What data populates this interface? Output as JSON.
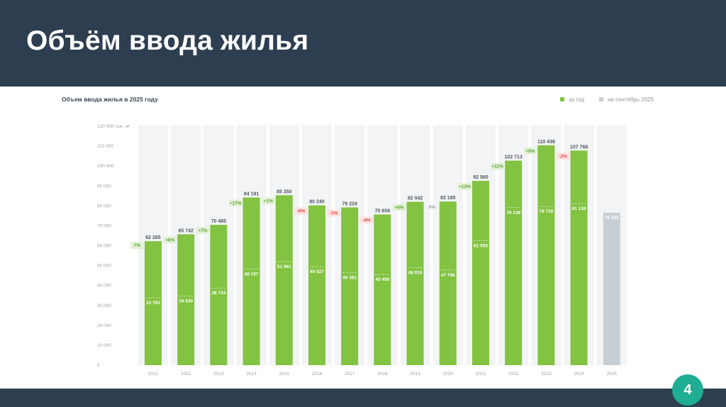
{
  "slide": {
    "title": "Объём ввода жилья",
    "page_number": "4"
  },
  "colors": {
    "header_bg": "#2d3e50",
    "bar_green": "#82c341",
    "bar_gray": "#c8cfd4",
    "badge": "#1fae93",
    "positive": "#5aa832",
    "negative": "#e0463a",
    "neutral": "#9aa1a7"
  },
  "chart_data": {
    "type": "bar",
    "title": "Объем ввода жилья в 2025 году",
    "legend": [
      {
        "label": "за год",
        "color": "#82c341"
      },
      {
        "label": "на сентябрь 2025",
        "color": "#c8cfd4"
      }
    ],
    "legend_position": "top-right",
    "ylim": [
      0,
      120000
    ],
    "yticks": [
      0,
      10000,
      20000,
      30000,
      40000,
      50000,
      60000,
      70000,
      80000,
      90000,
      100000,
      110000,
      120000
    ],
    "ytick_labels": [
      "0",
      "10 000",
      "20 000",
      "30 000",
      "40 000",
      "50 000",
      "60 000",
      "70 000",
      "80 000",
      "90 000",
      "100 000",
      "110 000",
      "120 000 тыс. м²"
    ],
    "categories": [
      "2011",
      "2012",
      "2013",
      "2014",
      "2015",
      "2016",
      "2017",
      "2018",
      "2019",
      "2020",
      "2021",
      "2022",
      "2023",
      "2024",
      "2025"
    ],
    "series": [
      {
        "name": "за год",
        "values": [
          62265,
          65742,
          70485,
          84191,
          85350,
          80240,
          79224,
          75658,
          82042,
          82185,
          92560,
          102713,
          110438,
          107768,
          null
        ],
        "labels": [
          "62 265",
          "65 742",
          "70 485",
          "84 191",
          "85 350",
          "80 240",
          "79 224",
          "75 658",
          "82 042",
          "82 185",
          "92 560",
          "102 713",
          "110 438",
          "107 768",
          ""
        ]
      },
      {
        "name": "на сентябрь 2025",
        "values": [
          null,
          null,
          null,
          null,
          null,
          null,
          null,
          null,
          null,
          null,
          null,
          null,
          null,
          null,
          76565
        ],
        "labels": [
          "",
          "",
          "",
          "",
          "",
          "",
          "",
          "",
          "",
          "",
          "",
          "",
          "",
          "",
          "76 565"
        ]
      }
    ],
    "inner_values": [
      33791,
      34630,
      38733,
      48197,
      51961,
      49527,
      46381,
      45499,
      48916,
      47796,
      62555,
      79139,
      79730,
      81136,
      null
    ],
    "inner_labels": [
      "33 791",
      "34 630",
      "38 733",
      "48 197",
      "51 961",
      "49 527",
      "46 381",
      "45 499",
      "48 916",
      "47 796",
      "62 555",
      "79 139",
      "79 730",
      "81 136",
      ""
    ],
    "changes": [
      "7%",
      "+6%",
      "+7%",
      "+17%",
      "+1%",
      "-6%",
      "-1%",
      "-4%",
      "+8%",
      "0%",
      "+13%",
      "+11%",
      "+8%",
      "-2%",
      ""
    ],
    "change_sign": [
      "pos",
      "pos",
      "pos",
      "pos",
      "pos",
      "neg",
      "neg",
      "neg",
      "pos",
      "zero",
      "pos",
      "pos",
      "pos",
      "neg",
      ""
    ],
    "grid": true
  }
}
